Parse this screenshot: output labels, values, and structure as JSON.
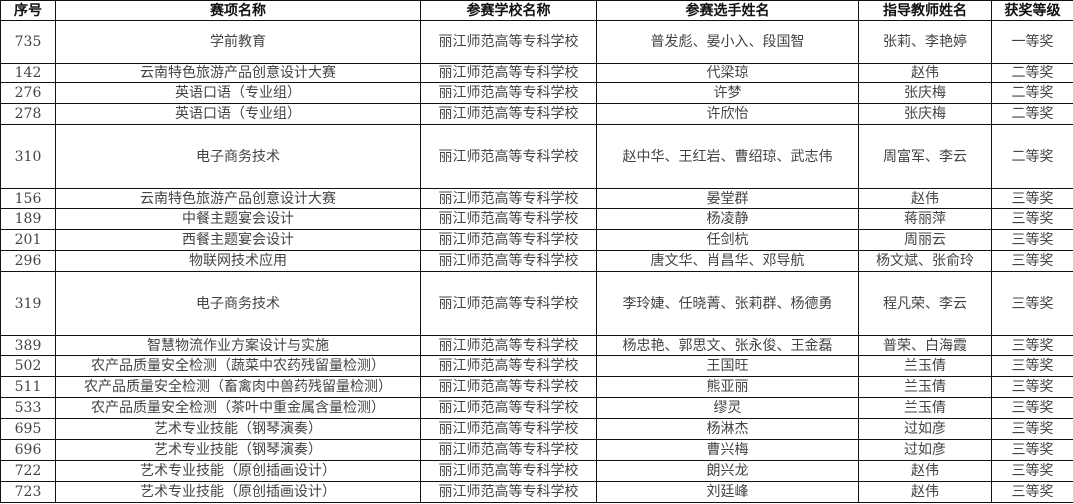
{
  "table": {
    "headers": [
      "序号",
      "赛项名称",
      "参赛学校名称",
      "参赛选手姓名",
      "指导教师姓名",
      "获奖等级"
    ],
    "rows": [
      [
        "735",
        "学前教育",
        "丽江师范高等专科学校",
        "普发彪、晏小入、段国智",
        "张莉、李艳婷",
        "一等奖"
      ],
      [
        "142",
        "云南特色旅游产品创意设计大赛",
        "丽江师范高等专科学校",
        "代梁琼",
        "赵伟",
        "二等奖"
      ],
      [
        "276",
        "英语口语（专业组）",
        "丽江师范高等专科学校",
        "许梦",
        "张庆梅",
        "二等奖"
      ],
      [
        "278",
        "英语口语（专业组）",
        "丽江师范高等专科学校",
        "许欣怡",
        "张庆梅",
        "二等奖"
      ],
      [
        "310",
        "电子商务技术",
        "丽江师范高等专科学校",
        "赵中华、王红岩、曹绍琼、武志伟",
        "周富军、李云",
        "二等奖"
      ],
      [
        "156",
        "云南特色旅游产品创意设计大赛",
        "丽江师范高等专科学校",
        "晏堂群",
        "赵伟",
        "三等奖"
      ],
      [
        "189",
        "中餐主题宴会设计",
        "丽江师范高等专科学校",
        "杨凌静",
        "蒋丽萍",
        "三等奖"
      ],
      [
        "201",
        "西餐主题宴会设计",
        "丽江师范高等专科学校",
        "任剑杭",
        "周丽云",
        "三等奖"
      ],
      [
        "296",
        "物联网技术应用",
        "丽江师范高等专科学校",
        "唐文华、肖昌华、邓导航",
        "杨文斌、张俞玲",
        "三等奖"
      ],
      [
        "319",
        "电子商务技术",
        "丽江师范高等专科学校",
        "李玲婕、任晓菁、张莉群、杨德勇",
        "程凡荣、李云",
        "三等奖"
      ],
      [
        "389",
        "智慧物流作业方案设计与实施",
        "丽江师范高等专科学校",
        "杨忠艳、郭思文、张永俊、王金磊",
        "普荣、白海霞",
        "三等奖"
      ],
      [
        "502",
        "农产品质量安全检测（蔬菜中农药残留量检测）",
        "丽江师范高等专科学校",
        "王国旺",
        "兰玉倩",
        "三等奖"
      ],
      [
        "511",
        "农产品质量安全检测（畜禽肉中兽药残留量检测）",
        "丽江师范高等专科学校",
        "熊亚丽",
        "兰玉倩",
        "三等奖"
      ],
      [
        "533",
        "农产品质量安全检测（茶叶中重金属含量检测）",
        "丽江师范高等专科学校",
        "缪灵",
        "兰玉倩",
        "三等奖"
      ],
      [
        "695",
        "艺术专业技能（钢琴演奏）",
        "丽江师范高等专科学校",
        "杨淋杰",
        "过如彦",
        "三等奖"
      ],
      [
        "696",
        "艺术专业技能（钢琴演奏）",
        "丽江师范高等专科学校",
        "曹兴梅",
        "过如彦",
        "三等奖"
      ],
      [
        "722",
        "艺术专业技能（原创插画设计）",
        "丽江师范高等专科学校",
        "朗兴龙",
        "赵伟",
        "三等奖"
      ],
      [
        "723",
        "艺术专业技能（原创插画设计）",
        "丽江师范高等专科学校",
        "刘廷峰",
        "赵伟",
        "三等奖"
      ]
    ]
  }
}
